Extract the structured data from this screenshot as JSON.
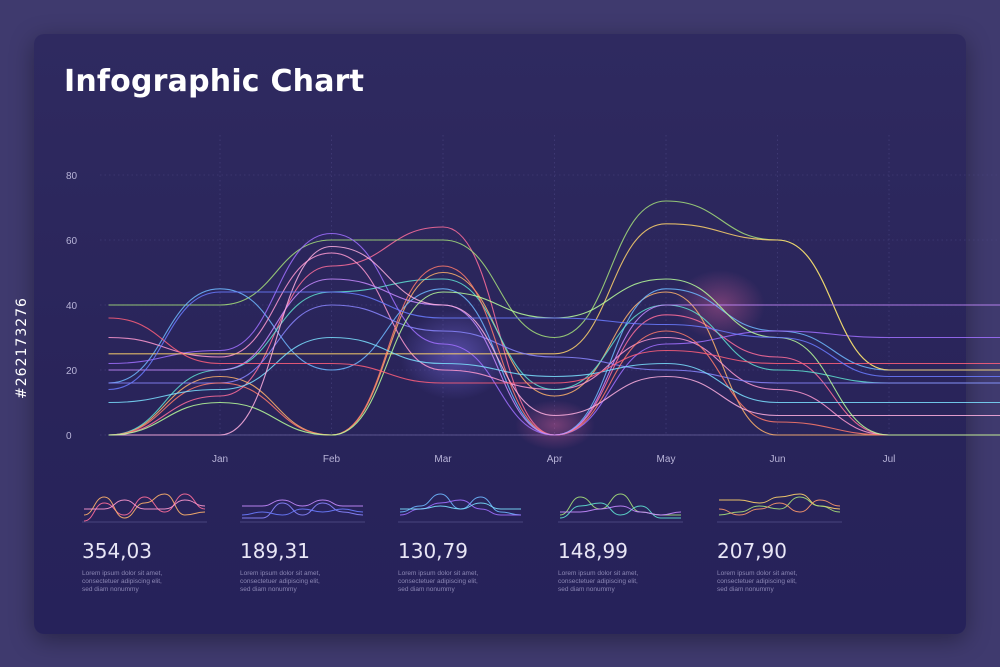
{
  "title": "Infographic Chart",
  "side_label": "#262173276",
  "colors": {
    "background": "#3f3a6e",
    "panel": "#2b265d",
    "grid": "#4a4580",
    "axis_text": "#b8b4d8"
  },
  "chart_data": [
    {
      "type": "line",
      "title": "Infographic Chart",
      "categories": [
        "Jan",
        "Feb",
        "Mar",
        "Apr",
        "May",
        "Jun",
        "Jul"
      ],
      "y_ticks": [
        0,
        20,
        40,
        60,
        80
      ],
      "ylim": [
        0,
        80
      ],
      "xlim": [
        -1,
        7.3
      ],
      "grid": true,
      "legend": "none",
      "series": [
        {
          "color": "#ff6e9b",
          "points": [
            [
              -1,
              0
            ],
            [
              0,
              12
            ],
            [
              1,
              52
            ],
            [
              2,
              64
            ],
            [
              3,
              0
            ],
            [
              4,
              37
            ],
            [
              5,
              24
            ],
            [
              6,
              0
            ]
          ]
        },
        {
          "color": "#ffb36b",
          "points": [
            [
              -1,
              0
            ],
            [
              0,
              18
            ],
            [
              1,
              0
            ],
            [
              2,
              50
            ],
            [
              3,
              12
            ],
            [
              4,
              44
            ],
            [
              5,
              0
            ],
            [
              6,
              0
            ]
          ]
        },
        {
          "color": "#a6e07a",
          "points": [
            [
              -1,
              40
            ],
            [
              0,
              40
            ],
            [
              1,
              60
            ],
            [
              2,
              60
            ],
            [
              3,
              30
            ],
            [
              4,
              72
            ],
            [
              5,
              60
            ],
            [
              6,
              20
            ]
          ]
        },
        {
          "color": "#6fb8ff",
          "points": [
            [
              -1,
              16
            ],
            [
              0,
              45
            ],
            [
              1,
              20
            ],
            [
              2,
              45
            ],
            [
              3,
              0
            ],
            [
              4,
              45
            ],
            [
              5,
              32
            ],
            [
              6,
              20
            ]
          ]
        },
        {
          "color": "#a070ff",
          "points": [
            [
              -1,
              22
            ],
            [
              0,
              26
            ],
            [
              1,
              62
            ],
            [
              2,
              28
            ],
            [
              3,
              0
            ],
            [
              4,
              28
            ],
            [
              5,
              32
            ],
            [
              6,
              30
            ]
          ]
        },
        {
          "color": "#ff9ad1",
          "points": [
            [
              -1,
              30
            ],
            [
              0,
              24
            ],
            [
              1,
              56
            ],
            [
              2,
              20
            ],
            [
              3,
              14
            ],
            [
              4,
              30
            ],
            [
              5,
              14
            ],
            [
              6,
              0
            ]
          ]
        },
        {
          "color": "#5fe0d0",
          "points": [
            [
              -1,
              0
            ],
            [
              0,
              20
            ],
            [
              1,
              44
            ],
            [
              2,
              48
            ],
            [
              3,
              14
            ],
            [
              4,
              40
            ],
            [
              5,
              20
            ],
            [
              6,
              16
            ]
          ]
        },
        {
          "color": "#ffd36b",
          "points": [
            [
              -1,
              25
            ],
            [
              0,
              25
            ],
            [
              1,
              25
            ],
            [
              2,
              25
            ],
            [
              3,
              25
            ],
            [
              4,
              65
            ],
            [
              5,
              60
            ],
            [
              6,
              20
            ]
          ]
        },
        {
          "color": "#8a86ff",
          "points": [
            [
              -1,
              16
            ],
            [
              0,
              16
            ],
            [
              1,
              40
            ],
            [
              2,
              32
            ],
            [
              3,
              24
            ],
            [
              4,
              20
            ],
            [
              5,
              16
            ],
            [
              6,
              16
            ]
          ]
        },
        {
          "color": "#ff7a6b",
          "points": [
            [
              -1,
              0
            ],
            [
              0,
              16
            ],
            [
              1,
              0
            ],
            [
              2,
              52
            ],
            [
              3,
              0
            ],
            [
              4,
              32
            ],
            [
              5,
              4
            ],
            [
              6,
              0
            ]
          ]
        },
        {
          "color": "#c78bff",
          "points": [
            [
              -1,
              20
            ],
            [
              0,
              20
            ],
            [
              1,
              48
            ],
            [
              2,
              40
            ],
            [
              3,
              0
            ],
            [
              4,
              40
            ],
            [
              5,
              40
            ],
            [
              6,
              40
            ]
          ]
        },
        {
          "color": "#7be0ff",
          "points": [
            [
              -1,
              10
            ],
            [
              0,
              14
            ],
            [
              1,
              30
            ],
            [
              2,
              22
            ],
            [
              3,
              18
            ],
            [
              4,
              22
            ],
            [
              5,
              10
            ],
            [
              6,
              10
            ]
          ]
        },
        {
          "color": "#ffb0e0",
          "points": [
            [
              -1,
              0
            ],
            [
              0,
              0
            ],
            [
              1,
              58
            ],
            [
              2,
              40
            ],
            [
              3,
              6
            ],
            [
              4,
              18
            ],
            [
              5,
              6
            ],
            [
              6,
              6
            ]
          ]
        },
        {
          "color": "#b8ff9a",
          "points": [
            [
              -1,
              0
            ],
            [
              0,
              10
            ],
            [
              1,
              0
            ],
            [
              2,
              44
            ],
            [
              3,
              36
            ],
            [
              4,
              48
            ],
            [
              5,
              30
            ],
            [
              6,
              0
            ]
          ]
        },
        {
          "color": "#ff5f7a",
          "points": [
            [
              -1,
              36
            ],
            [
              0,
              22
            ],
            [
              1,
              22
            ],
            [
              2,
              16
            ],
            [
              3,
              16
            ],
            [
              4,
              26
            ],
            [
              5,
              22
            ],
            [
              6,
              22
            ]
          ]
        },
        {
          "color": "#6a7bff",
          "points": [
            [
              -1,
              14
            ],
            [
              0,
              44
            ],
            [
              1,
              44
            ],
            [
              2,
              36
            ],
            [
              3,
              36
            ],
            [
              4,
              34
            ],
            [
              5,
              30
            ],
            [
              6,
              18
            ]
          ]
        }
      ]
    },
    {
      "type": "line",
      "series": [
        {
          "color": "#ff6e9b",
          "values": [
            0,
            6,
            2,
            8,
            3,
            9,
            4
          ]
        },
        {
          "color": "#ffb36b",
          "values": [
            2,
            8,
            1,
            6,
            9,
            2,
            3
          ]
        },
        {
          "color": "#ff9ad1",
          "values": [
            4,
            4,
            7,
            4,
            4,
            7,
            5
          ]
        }
      ]
    },
    {
      "type": "line",
      "series": [
        {
          "color": "#8a86ff",
          "values": [
            1,
            1,
            6,
            2,
            6,
            3,
            2
          ]
        },
        {
          "color": "#c78bff",
          "values": [
            5,
            5,
            7,
            5,
            7,
            5,
            5
          ]
        },
        {
          "color": "#6a7bff",
          "values": [
            2,
            3,
            2,
            4,
            3,
            4,
            3
          ]
        }
      ]
    },
    {
      "type": "line",
      "series": [
        {
          "color": "#6fb8ff",
          "values": [
            3,
            5,
            9,
            4,
            8,
            3,
            2
          ]
        },
        {
          "color": "#a070ff",
          "values": [
            2,
            4,
            6,
            7,
            4,
            2,
            2
          ]
        },
        {
          "color": "#7be0ff",
          "values": [
            4,
            4,
            5,
            4,
            6,
            4,
            4
          ]
        }
      ]
    },
    {
      "type": "line",
      "series": [
        {
          "color": "#a6e07a",
          "values": [
            2,
            8,
            4,
            9,
            3,
            2,
            2
          ]
        },
        {
          "color": "#5fe0d0",
          "values": [
            1,
            5,
            6,
            2,
            5,
            1,
            1
          ]
        },
        {
          "color": "#c78bff",
          "values": [
            3,
            3,
            4,
            5,
            3,
            2,
            3
          ]
        }
      ]
    },
    {
      "type": "line",
      "series": [
        {
          "color": "#ffd36b",
          "values": [
            7,
            7,
            6,
            8,
            9,
            5,
            4
          ]
        },
        {
          "color": "#a6e07a",
          "values": [
            2,
            3,
            5,
            4,
            8,
            5,
            3
          ]
        },
        {
          "color": "#ff9a6b",
          "values": [
            4,
            2,
            4,
            6,
            3,
            7,
            5
          ]
        }
      ]
    }
  ],
  "stats": [
    {
      "value": "354,03",
      "desc": [
        "Lorem ipsum dolor sit amet,",
        "consectetuer adipiscing elit,",
        "sed diam nonummy"
      ]
    },
    {
      "value": "189,31",
      "desc": [
        "Lorem ipsum dolor sit amet,",
        "consectetuer adipiscing elit,",
        "sed diam nonummy"
      ]
    },
    {
      "value": "130,79",
      "desc": [
        "Lorem ipsum dolor sit amet,",
        "consectetuer adipiscing elit,",
        "sed diam nonummy"
      ]
    },
    {
      "value": "148,99",
      "desc": [
        "Lorem ipsum dolor sit amet,",
        "consectetuer adipiscing elit,",
        "sed diam nonummy"
      ]
    },
    {
      "value": "207,90",
      "desc": [
        "Lorem ipsum dolor sit amet,",
        "consectetuer adipiscing elit,",
        "sed diam nonummy"
      ]
    }
  ]
}
